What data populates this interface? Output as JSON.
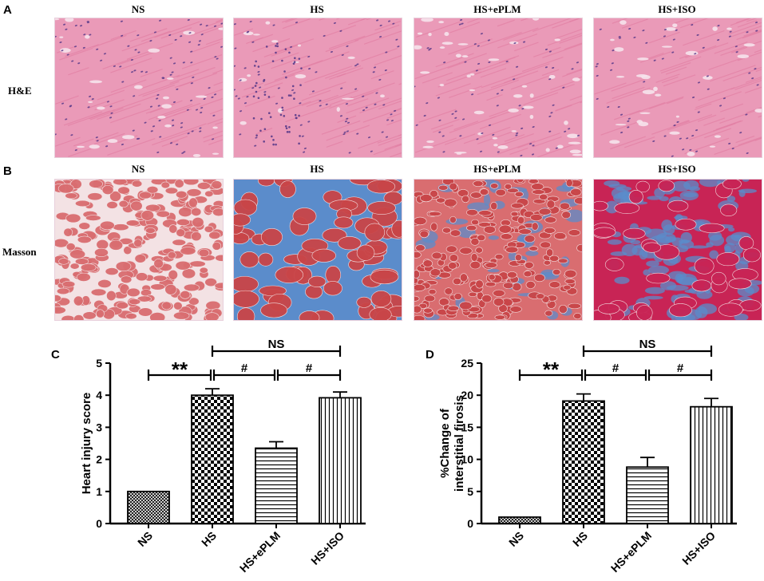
{
  "figure": {
    "panels": {
      "A": "A",
      "B": "B",
      "C": "C",
      "D": "D"
    },
    "groups": [
      "NS",
      "HS",
      "HS+ePLM",
      "HS+ISO"
    ],
    "row_labels": {
      "he": "H&E",
      "masson": "Masson"
    },
    "colors": {
      "he_bg": "#ea9ab8",
      "he_fiber": "#e27fa4",
      "he_nuclei": "#5a3b8a",
      "he_space": "#f6e3ec",
      "masson_bg": "#d96d70",
      "masson_fiber": "#c94548",
      "masson_blue": "#5b8ccb",
      "masson_space": "#f3e2e4",
      "masson_iso_fiber": "#c82455"
    }
  },
  "chart_data": [
    {
      "type": "bar",
      "panel": "C",
      "categories": [
        "NS",
        "HS",
        "HS+ePLM",
        "HS+ISO"
      ],
      "values": [
        1.0,
        4.0,
        2.35,
        3.92
      ],
      "errors": [
        0,
        0.2,
        0.2,
        0.18
      ],
      "patterns": [
        "crosshatch",
        "checker",
        "horizontal",
        "vertical"
      ],
      "ylabel": "Heart injury score",
      "xlabel": "",
      "ylim": [
        0,
        5
      ],
      "yticks": [
        0,
        1,
        2,
        3,
        4,
        5
      ],
      "annotations": {
        "sig_ns_hs": "**",
        "sig_hs_eplm": "#",
        "sig_eplm_iso": "#",
        "sig_hs_iso": "NS"
      }
    },
    {
      "type": "bar",
      "panel": "D",
      "categories": [
        "NS",
        "HS",
        "HS+ePLM",
        "HS+ISO"
      ],
      "values": [
        1.0,
        19.1,
        8.8,
        18.2
      ],
      "errors": [
        0,
        1.1,
        1.5,
        1.3
      ],
      "patterns": [
        "crosshatch",
        "checker",
        "horizontal",
        "vertical"
      ],
      "ylabel": "%Change of interstitial firosis",
      "ylabel_lines": [
        "%Change of",
        "interstitial firosis"
      ],
      "xlabel": "",
      "ylim": [
        0,
        25
      ],
      "yticks": [
        0,
        5,
        10,
        15,
        20,
        25
      ],
      "annotations": {
        "sig_ns_hs": "**",
        "sig_hs_eplm": "#",
        "sig_eplm_iso": "#",
        "sig_hs_iso": "NS"
      }
    }
  ]
}
